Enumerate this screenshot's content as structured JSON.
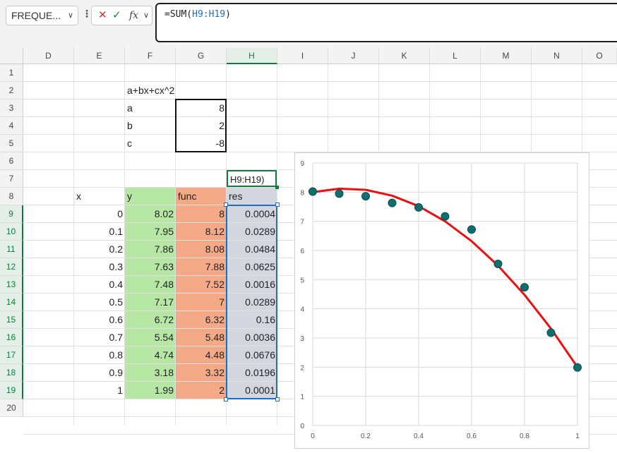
{
  "formula_bar": {
    "name_box": "FREQUE...",
    "formula_prefix": "=SUM(",
    "formula_ref": "H9:H19",
    "formula_suffix": ")"
  },
  "columns": [
    "D",
    "E",
    "F",
    "G",
    "H",
    "I",
    "J",
    "K",
    "L",
    "M",
    "N",
    "O"
  ],
  "rows": [
    "1",
    "2",
    "3",
    "4",
    "5",
    "6",
    "7",
    "8",
    "9",
    "10",
    "11",
    "12",
    "13",
    "14",
    "15",
    "16",
    "17",
    "18",
    "19",
    "20"
  ],
  "cells": {
    "f2": "a+bx+cx^2",
    "f3": "a",
    "g3": "8",
    "f4": "b",
    "g4": "2",
    "f5": "c",
    "g5": "-8",
    "h7": "H9:H19)",
    "e8": "x",
    "f8": "y",
    "g8": "func",
    "h8": "res"
  },
  "table": {
    "x": [
      "0",
      "0.1",
      "0.2",
      "0.3",
      "0.4",
      "0.5",
      "0.6",
      "0.7",
      "0.8",
      "0.9",
      "1"
    ],
    "y": [
      "8.02",
      "7.95",
      "7.86",
      "7.63",
      "7.48",
      "7.17",
      "6.72",
      "5.54",
      "4.74",
      "3.18",
      "1.99"
    ],
    "func": [
      "8",
      "8.12",
      "8.08",
      "7.88",
      "7.52",
      "7",
      "6.32",
      "5.48",
      "4.48",
      "3.32",
      "2"
    ],
    "res": [
      "0.0004",
      "0.0289",
      "0.0484",
      "0.0625",
      "0.0016",
      "0.0289",
      "0.16",
      "0.0036",
      "0.0676",
      "0.0196",
      "0.0001"
    ]
  },
  "chart_data": {
    "type": "scatter",
    "xlim": [
      0,
      1
    ],
    "ylim": [
      0,
      9
    ],
    "x_ticks": [
      "0",
      "0.2",
      "0.4",
      "0.6",
      "0.8",
      "1"
    ],
    "y_ticks": [
      "0",
      "1",
      "2",
      "3",
      "4",
      "5",
      "6",
      "7",
      "8",
      "9"
    ],
    "grid": true,
    "series": [
      {
        "kind": "points",
        "color": "#0f6e6e",
        "x": [
          0,
          0.1,
          0.2,
          0.3,
          0.4,
          0.5,
          0.6,
          0.7,
          0.8,
          0.9,
          1
        ],
        "y": [
          8.02,
          7.95,
          7.86,
          7.63,
          7.48,
          7.17,
          6.72,
          5.54,
          4.74,
          3.18,
          1.99
        ]
      },
      {
        "kind": "line",
        "color": "#e81010",
        "x": [
          0,
          0.1,
          0.2,
          0.3,
          0.4,
          0.5,
          0.6,
          0.7,
          0.8,
          0.9,
          1
        ],
        "y": [
          8,
          8.12,
          8.08,
          7.88,
          7.52,
          7,
          6.32,
          5.48,
          4.48,
          3.32,
          2
        ]
      }
    ]
  },
  "colors": {
    "accent": "#107c41",
    "selection": "#1f6fc1"
  }
}
